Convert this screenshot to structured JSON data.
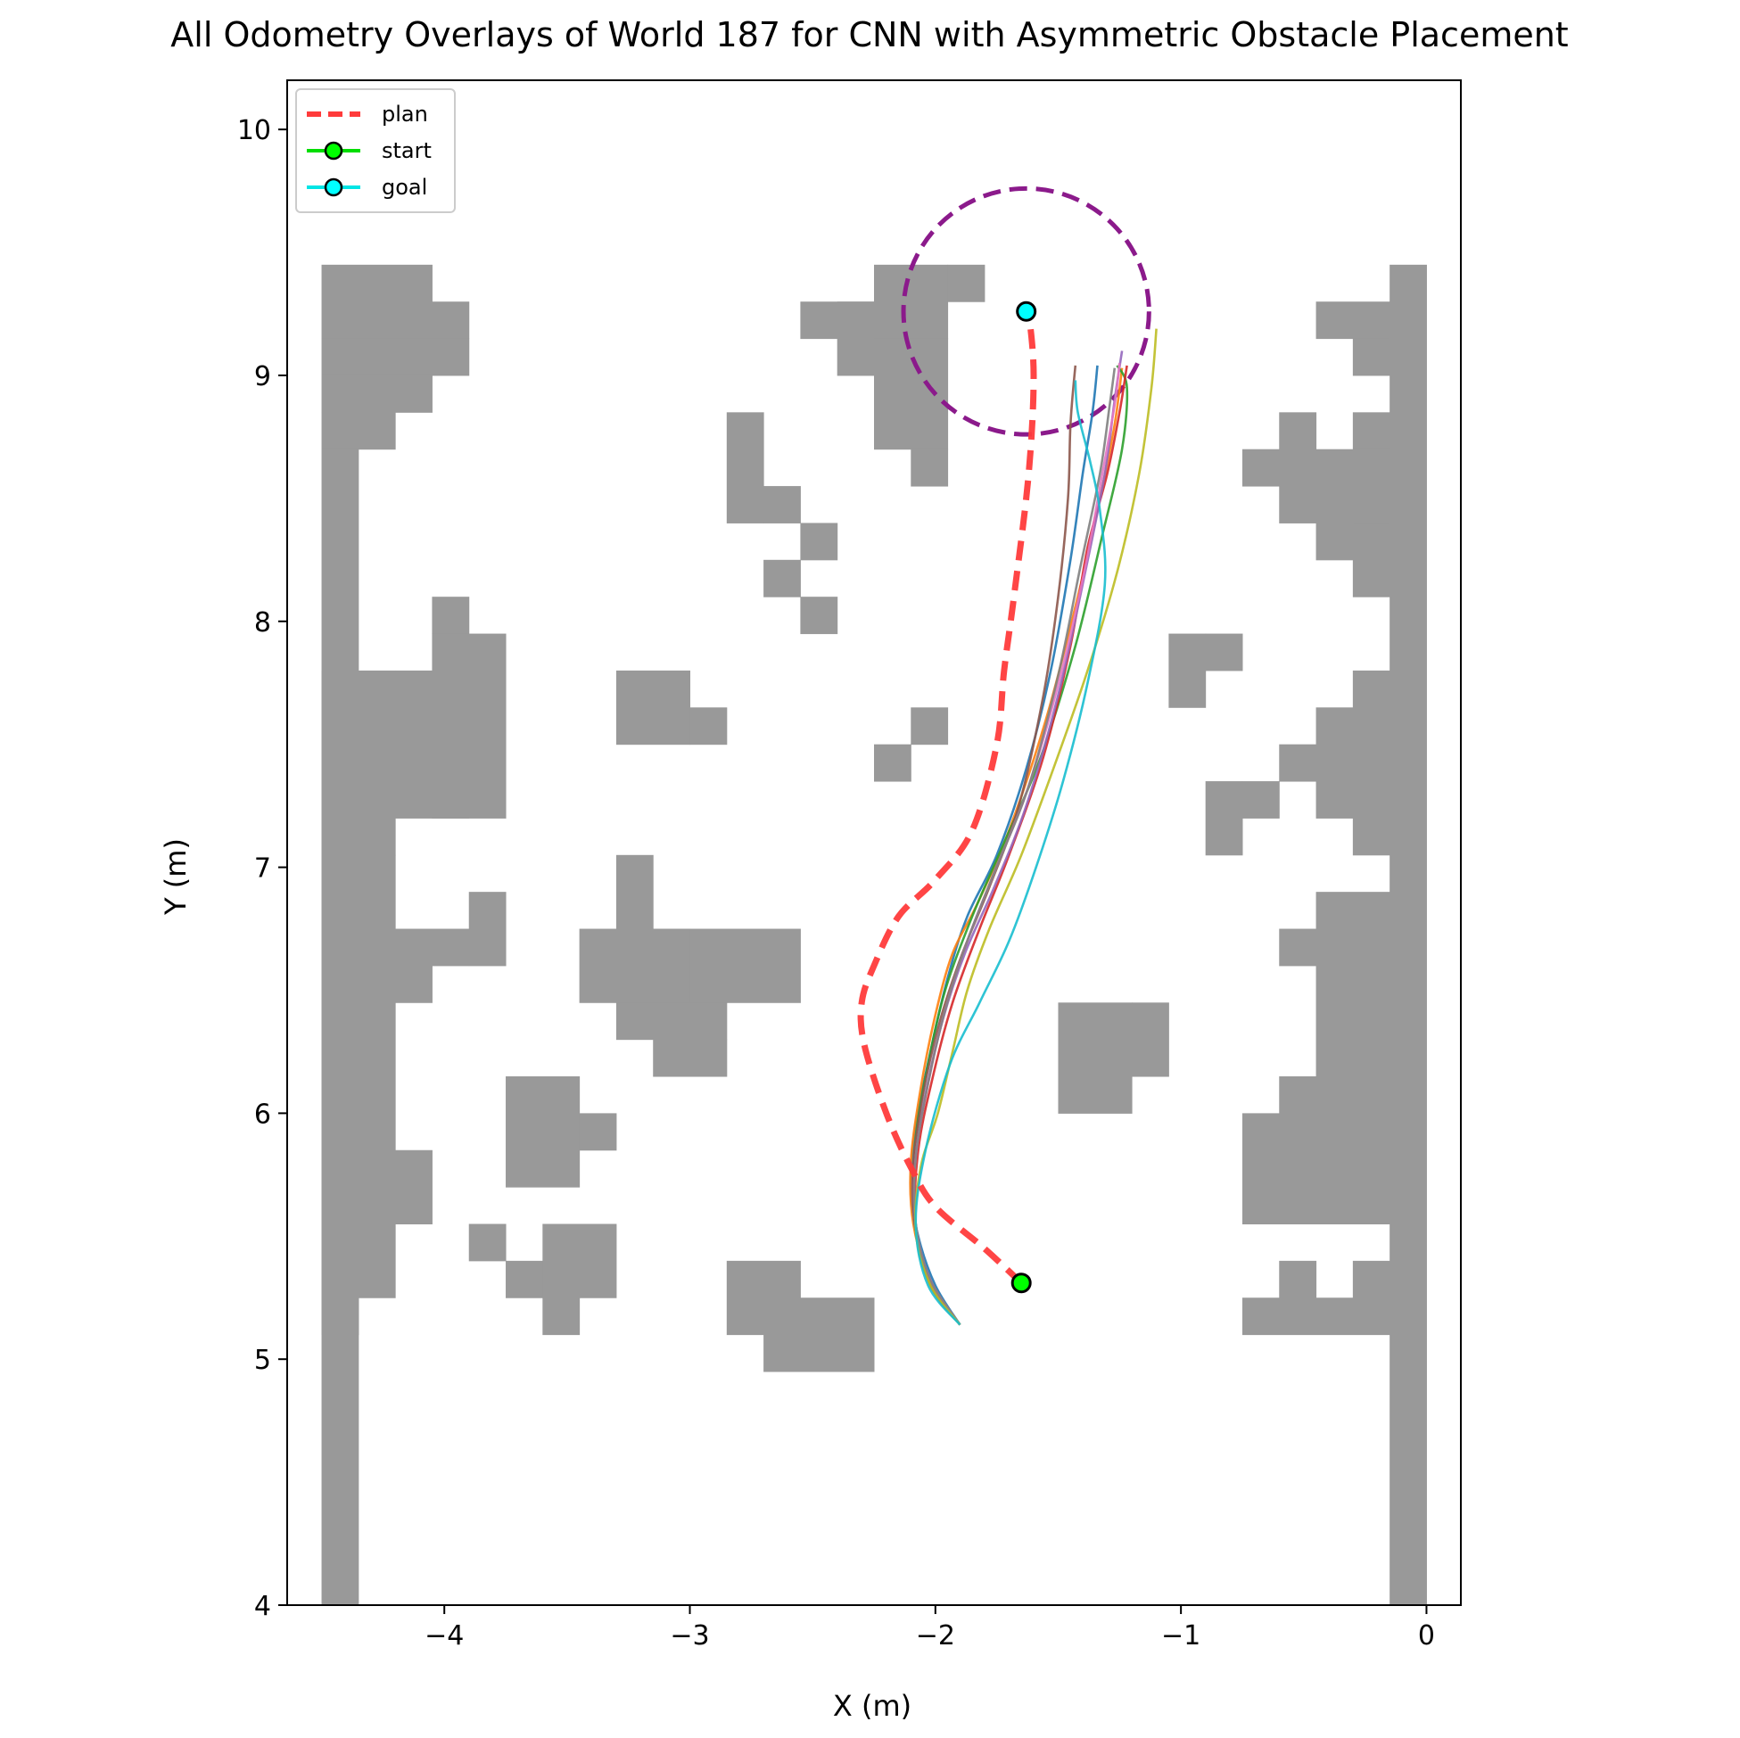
{
  "chart_data": {
    "type": "line",
    "title": "All Odometry Overlays of World 187 for CNN with Asymmetric Obstacle Placement",
    "xlabel": "X (m)",
    "ylabel": "Y (m)",
    "xlim": [
      -4.64,
      0.14
    ],
    "ylim": [
      4.0,
      10.2
    ],
    "xticks": [
      -4,
      -3,
      -2,
      -1,
      0
    ],
    "xtick_labels": [
      "−4",
      "−3",
      "−2",
      "−1",
      "0"
    ],
    "yticks": [
      4,
      5,
      6,
      7,
      8,
      9,
      10
    ],
    "ytick_labels": [
      "4",
      "5",
      "6",
      "7",
      "8",
      "9",
      "10"
    ],
    "grid": false,
    "legend": {
      "position": "top-left",
      "entries": [
        {
          "label": "plan",
          "color": "#ff3b3b",
          "style": "dashed"
        },
        {
          "label": "start",
          "color": "#00dd00",
          "style": "line-marker",
          "marker_color": "#00ff00"
        },
        {
          "label": "goal",
          "color": "#00e5e5",
          "style": "line-marker",
          "marker_color": "#00ffff"
        }
      ]
    },
    "obstacle_color": "#999999",
    "cell_size": 0.15,
    "obstacles": [
      [
        -4.5,
        9.3,
        0.45,
        0.15
      ],
      [
        -4.5,
        9.15,
        0.6,
        0.15
      ],
      [
        -4.5,
        9.0,
        0.6,
        0.15
      ],
      [
        -4.5,
        8.85,
        0.45,
        0.15
      ],
      [
        -4.5,
        8.7,
        0.3,
        0.15
      ],
      [
        -4.5,
        4.0,
        0.15,
        4.7
      ],
      [
        -4.5,
        7.05,
        0.3,
        0.75
      ],
      [
        -4.2,
        7.2,
        0.3,
        0.6
      ],
      [
        -4.05,
        7.95,
        0.15,
        0.15
      ],
      [
        -4.05,
        7.2,
        0.3,
        0.75
      ],
      [
        -4.5,
        5.25,
        0.3,
        1.8
      ],
      [
        -4.2,
        6.45,
        0.15,
        0.3
      ],
      [
        -4.05,
        6.6,
        0.15,
        0.15
      ],
      [
        -3.9,
        6.6,
        0.15,
        0.3
      ],
      [
        -4.2,
        5.55,
        0.15,
        0.3
      ],
      [
        -4.5,
        5.1,
        0.15,
        0.15
      ],
      [
        -3.3,
        7.5,
        0.3,
        0.3
      ],
      [
        -3.0,
        7.5,
        0.15,
        0.15
      ],
      [
        -3.3,
        6.75,
        0.15,
        0.3
      ],
      [
        -3.15,
        6.6,
        0.15,
        0.15
      ],
      [
        -3.45,
        6.45,
        0.45,
        0.3
      ],
      [
        -3.0,
        6.45,
        0.45,
        0.3
      ],
      [
        -3.3,
        6.3,
        0.45,
        0.15
      ],
      [
        -3.15,
        6.15,
        0.3,
        0.15
      ],
      [
        -3.75,
        5.7,
        0.3,
        0.45
      ],
      [
        -3.45,
        5.85,
        0.15,
        0.15
      ],
      [
        -3.9,
        5.4,
        0.15,
        0.15
      ],
      [
        -3.75,
        5.25,
        0.3,
        0.15
      ],
      [
        -3.6,
        5.25,
        0.3,
        0.3
      ],
      [
        -3.6,
        5.1,
        0.15,
        0.15
      ],
      [
        -2.85,
        8.4,
        0.15,
        0.45
      ],
      [
        -2.7,
        8.4,
        0.15,
        0.15
      ],
      [
        -2.55,
        8.25,
        0.15,
        0.15
      ],
      [
        -2.7,
        8.1,
        0.15,
        0.15
      ],
      [
        -2.55,
        7.95,
        0.15,
        0.15
      ],
      [
        -2.55,
        9.15,
        0.3,
        0.15
      ],
      [
        -2.4,
        9.0,
        0.15,
        0.3
      ],
      [
        -2.25,
        9.15,
        0.3,
        0.3
      ],
      [
        -2.25,
        8.7,
        0.3,
        0.45
      ],
      [
        -2.1,
        8.55,
        0.15,
        0.15
      ],
      [
        -1.95,
        9.3,
        0.15,
        0.15
      ],
      [
        -2.25,
        7.35,
        0.15,
        0.15
      ],
      [
        -2.1,
        7.5,
        0.15,
        0.15
      ],
      [
        -2.85,
        5.1,
        0.3,
        0.3
      ],
      [
        -2.7,
        4.95,
        0.45,
        0.3
      ],
      [
        -2.55,
        5.25,
        0.3,
        0.0
      ],
      [
        -1.5,
        6.0,
        0.3,
        0.45
      ],
      [
        -1.2,
        6.15,
        0.15,
        0.3
      ],
      [
        -1.05,
        7.65,
        0.15,
        0.3
      ],
      [
        -0.9,
        7.8,
        0.15,
        0.15
      ],
      [
        -0.9,
        7.05,
        0.15,
        0.3
      ],
      [
        -0.75,
        7.2,
        0.15,
        0.15
      ],
      [
        -0.15,
        4.0,
        0.15,
        5.45
      ],
      [
        -0.45,
        9.15,
        0.3,
        0.15
      ],
      [
        -0.3,
        9.0,
        0.15,
        0.15
      ],
      [
        -0.3,
        8.1,
        0.15,
        0.75
      ],
      [
        -0.6,
        8.4,
        0.45,
        0.3
      ],
      [
        -0.45,
        8.25,
        0.15,
        0.15
      ],
      [
        -0.6,
        8.7,
        0.15,
        0.15
      ],
      [
        -0.75,
        8.55,
        0.15,
        0.15
      ],
      [
        -0.3,
        7.05,
        0.15,
        0.75
      ],
      [
        -0.45,
        7.2,
        0.15,
        0.45
      ],
      [
        -0.6,
        7.35,
        0.15,
        0.15
      ],
      [
        -0.45,
        6.0,
        0.3,
        0.9
      ],
      [
        -0.6,
        6.6,
        0.15,
        0.15
      ],
      [
        -0.6,
        6.0,
        0.15,
        0.15
      ],
      [
        -0.75,
        5.55,
        0.6,
        0.45
      ],
      [
        -0.6,
        5.25,
        0.15,
        0.15
      ],
      [
        -0.3,
        5.25,
        0.15,
        0.15
      ],
      [
        -0.75,
        5.1,
        0.6,
        0.15
      ]
    ],
    "plan": {
      "color": "#ff3b3b",
      "x": [
        -1.65,
        -1.8,
        -2.0,
        -2.1,
        -2.2,
        -2.29,
        -2.3,
        -2.25,
        -2.15,
        -2.0,
        -1.85,
        -1.75,
        -1.72,
        -1.68,
        -1.62,
        -1.6,
        -1.62
      ],
      "y": [
        5.31,
        5.45,
        5.62,
        5.78,
        6.0,
        6.28,
        6.45,
        6.6,
        6.8,
        6.95,
        7.15,
        7.5,
        7.8,
        8.1,
        8.6,
        9.0,
        9.26
      ]
    },
    "start": {
      "x": -1.65,
      "y": 5.31,
      "color": "#00ff00"
    },
    "goal": {
      "x": -1.63,
      "y": 9.26,
      "color": "#00ffff"
    },
    "goal_radius": 0.5,
    "goal_circle_color": "#8b1a8b",
    "series": [
      {
        "color": "#1f77b4",
        "x": [
          -1.9,
          -2.0,
          -2.07,
          -2.1,
          -2.08,
          -2.02,
          -1.95,
          -1.87,
          -1.75,
          -1.63,
          -1.53,
          -1.45,
          -1.4,
          -1.36,
          -1.34
        ],
        "y": [
          5.14,
          5.3,
          5.5,
          5.7,
          5.95,
          6.25,
          6.55,
          6.8,
          7.05,
          7.4,
          7.8,
          8.25,
          8.6,
          8.85,
          9.04
        ]
      },
      {
        "color": "#ff7f0e",
        "x": [
          -1.9,
          -2.02,
          -2.09,
          -2.1,
          -2.06,
          -2.0,
          -1.93,
          -1.83,
          -1.7,
          -1.55,
          -1.42,
          -1.33,
          -1.27,
          -1.24
        ],
        "y": [
          5.14,
          5.32,
          5.55,
          5.8,
          6.1,
          6.4,
          6.65,
          6.85,
          7.15,
          7.6,
          8.1,
          8.5,
          8.8,
          9.03
        ]
      },
      {
        "color": "#2ca02c",
        "x": [
          -1.9,
          -2.03,
          -2.09,
          -2.08,
          -2.03,
          -1.96,
          -1.85,
          -1.72,
          -1.57,
          -1.43,
          -1.32,
          -1.24,
          -1.22,
          -1.26
        ],
        "y": [
          5.14,
          5.33,
          5.6,
          5.9,
          6.2,
          6.5,
          6.8,
          7.1,
          7.45,
          7.9,
          8.35,
          8.7,
          8.95,
          9.04
        ]
      },
      {
        "color": "#d62728",
        "x": [
          -1.9,
          -2.02,
          -2.08,
          -2.07,
          -2.01,
          -1.93,
          -1.82,
          -1.7,
          -1.56,
          -1.45,
          -1.38,
          -1.3,
          -1.25,
          -1.22
        ],
        "y": [
          5.14,
          5.3,
          5.55,
          5.85,
          6.15,
          6.45,
          6.75,
          7.05,
          7.45,
          7.9,
          8.3,
          8.6,
          8.85,
          9.04
        ]
      },
      {
        "color": "#9467bd",
        "x": [
          -1.9,
          -2.01,
          -2.08,
          -2.09,
          -2.04,
          -1.97,
          -1.88,
          -1.76,
          -1.63,
          -1.5,
          -1.39,
          -1.31,
          -1.27,
          -1.24
        ],
        "y": [
          5.14,
          5.3,
          5.52,
          5.78,
          6.08,
          6.38,
          6.65,
          6.92,
          7.25,
          7.7,
          8.2,
          8.6,
          8.9,
          9.1
        ]
      },
      {
        "color": "#8c564b",
        "x": [
          -1.9,
          -2.02,
          -2.08,
          -2.09,
          -2.05,
          -1.98,
          -1.89,
          -1.78,
          -1.66,
          -1.56,
          -1.5,
          -1.46,
          -1.45,
          -1.43
        ],
        "y": [
          5.14,
          5.3,
          5.52,
          5.78,
          6.08,
          6.38,
          6.65,
          6.92,
          7.25,
          7.7,
          8.1,
          8.5,
          8.8,
          9.04
        ]
      },
      {
        "color": "#e377c2",
        "x": [
          -1.9,
          -2.02,
          -2.08,
          -2.08,
          -2.03,
          -1.96,
          -1.87,
          -1.76,
          -1.62,
          -1.49,
          -1.39,
          -1.32,
          -1.27,
          -1.25
        ],
        "y": [
          5.14,
          5.32,
          5.55,
          5.82,
          6.12,
          6.42,
          6.7,
          6.98,
          7.33,
          7.78,
          8.22,
          8.6,
          8.88,
          9.05
        ]
      },
      {
        "color": "#7f7f7f",
        "x": [
          -1.9,
          -2.02,
          -2.08,
          -2.08,
          -2.03,
          -1.96,
          -1.87,
          -1.76,
          -1.62,
          -1.5,
          -1.41,
          -1.33,
          -1.29,
          -1.27
        ],
        "y": [
          5.14,
          5.32,
          5.55,
          5.82,
          6.12,
          6.42,
          6.7,
          6.98,
          7.33,
          7.78,
          8.22,
          8.6,
          8.88,
          9.03
        ]
      },
      {
        "color": "#bcbd22",
        "x": [
          -1.9,
          -2.02,
          -2.08,
          -2.06,
          -1.99,
          -1.93,
          -1.87,
          -1.78,
          -1.65,
          -1.52,
          -1.38,
          -1.26,
          -1.17,
          -1.12,
          -1.1
        ],
        "y": [
          5.14,
          5.3,
          5.52,
          5.78,
          6.0,
          6.25,
          6.5,
          6.75,
          7.05,
          7.4,
          7.8,
          8.2,
          8.6,
          8.95,
          9.19
        ]
      },
      {
        "color": "#17becf",
        "x": [
          -1.9,
          -2.03,
          -2.08,
          -2.04,
          -1.94,
          -1.82,
          -1.7,
          -1.59,
          -1.48,
          -1.38,
          -1.31,
          -1.33,
          -1.37,
          -1.42,
          -1.43
        ],
        "y": [
          5.14,
          5.3,
          5.55,
          5.85,
          6.2,
          6.45,
          6.7,
          7.0,
          7.35,
          7.75,
          8.15,
          8.45,
          8.65,
          8.85,
          8.98
        ]
      }
    ]
  }
}
